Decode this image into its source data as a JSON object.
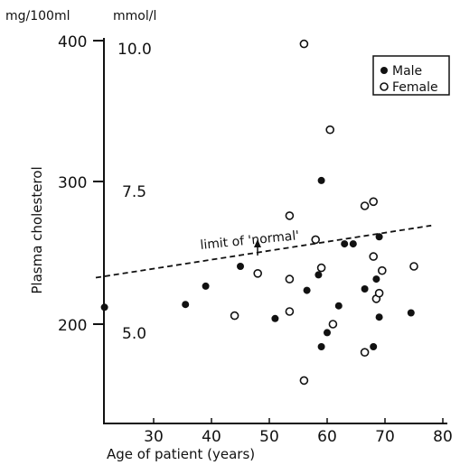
{
  "chart_data": {
    "type": "scatter",
    "title": "",
    "xlabel": "Age of patient (years)",
    "ylabel": "Plasma cholesterol",
    "y_units_left": "mg/100ml",
    "y_units_right": "mmol/l",
    "xlim": [
      22,
      80
    ],
    "ylim": [
      148,
      402
    ],
    "x_ticks": [
      "30",
      "40",
      "50",
      "60",
      "70",
      "80"
    ],
    "y_ticks_mg": [
      "400",
      "300",
      "200"
    ],
    "y_ticks_mmol": [
      "10.0",
      "7.5",
      "5.0"
    ],
    "grid": false,
    "legend_position": "top-right",
    "annotation": {
      "label": "limit of 'normal'",
      "line_points": [
        [
          22,
          233
        ],
        [
          80,
          270
        ]
      ]
    },
    "series": [
      {
        "name": "Male",
        "marker": "filled",
        "points": [
          [
            23.5,
            212
          ],
          [
            37.5,
            214
          ],
          [
            41,
            227
          ],
          [
            47,
            241
          ],
          [
            53,
            204
          ],
          [
            58.5,
            224
          ],
          [
            60.5,
            235
          ],
          [
            61,
            302
          ],
          [
            61,
            184
          ],
          [
            62,
            194
          ],
          [
            64,
            213
          ],
          [
            65,
            257
          ],
          [
            66.5,
            257
          ],
          [
            68.5,
            225
          ],
          [
            70,
            184
          ],
          [
            70.5,
            232
          ],
          [
            71,
            262
          ],
          [
            71,
            205
          ],
          [
            76.5,
            208
          ]
        ]
      },
      {
        "name": "Female",
        "marker": "open",
        "points": [
          [
            46,
            206
          ],
          [
            50,
            236
          ],
          [
            55.5,
            277
          ],
          [
            55.5,
            232
          ],
          [
            55.5,
            209
          ],
          [
            58,
            399
          ],
          [
            58,
            160
          ],
          [
            60,
            260
          ],
          [
            61,
            240
          ],
          [
            62.5,
            338
          ],
          [
            63,
            200
          ],
          [
            68.5,
            284
          ],
          [
            68.5,
            180
          ],
          [
            70,
            287
          ],
          [
            70,
            248
          ],
          [
            70.5,
            218
          ],
          [
            71,
            222
          ],
          [
            71.5,
            238
          ],
          [
            77,
            241
          ]
        ]
      }
    ]
  }
}
